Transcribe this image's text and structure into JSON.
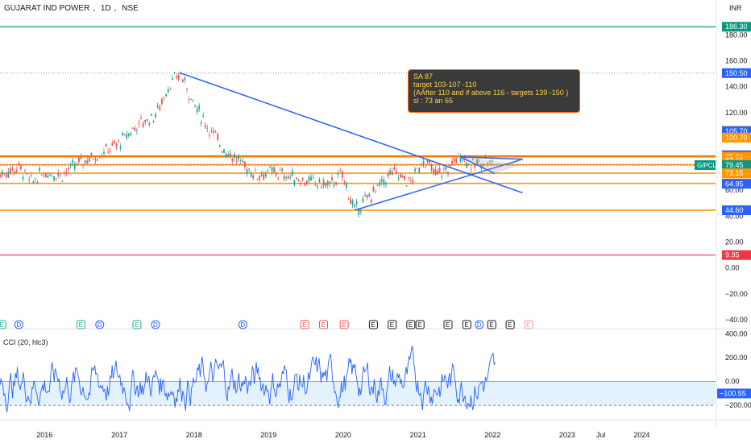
{
  "header": {
    "symbol": "GUJARAT IND POWER",
    "interval": "1D",
    "exchange": "NSE",
    "currency": "INR"
  },
  "note": {
    "lines": [
      "SA  87",
      "target 103-107 -110",
      "(AAfter 110 and if above 116 - targets 139 -150  )",
      "sl : 73 an 65"
    ]
  },
  "indicator": {
    "label": "CCI (20, hlc3)"
  },
  "colors": {
    "up": "#26a69a",
    "down": "#ef5350",
    "orange": "#ff9800",
    "blue": "#2962ff",
    "green_line": "#089981",
    "red_line": "#f23645",
    "cci": "#2962ff"
  },
  "chart_data": [
    {
      "type": "candlestick",
      "yrange": [
        -45,
        202
      ],
      "ylabel": "",
      "y_ticks": [
        "180.00",
        "160.00",
        "140.00",
        "120.00",
        "100.00",
        "80.00",
        "60.00",
        "40.00",
        "20.00",
        "0.00",
        "−20.00",
        "−40.00"
      ],
      "y_tick_values": [
        180,
        160,
        140,
        120,
        100,
        80,
        60,
        40,
        20,
        0,
        -20,
        -40
      ],
      "x_tick_labels": [
        "2016",
        "2017",
        "2018",
        "2019",
        "2020",
        "2021",
        "2022",
        "2023",
        "Jul",
        "2024"
      ],
      "x_tick_dates": [
        "2016-01-01",
        "2017-01-01",
        "2018-01-01",
        "2019-01-01",
        "2020-01-01",
        "2021-01-01",
        "2022-01-01",
        "2023-01-01",
        "2023-07-01",
        "2024-01-01"
      ],
      "price_levels": [
        {
          "label": "186.30",
          "value": 186.3,
          "color": "#089981",
          "line": true
        },
        {
          "label": "150.50",
          "value": 150.5,
          "color": "#2962ff",
          "line": false,
          "dotted": true
        },
        {
          "label": "105.95",
          "value": 105.95,
          "color": "#ff9800",
          "line": false
        },
        {
          "label": "105.70",
          "value": 105.7,
          "color": "#2962ff",
          "line": false
        },
        {
          "label": "100.70",
          "value": 100.7,
          "color": "#ff9800",
          "line": false
        },
        {
          "label": "87.10",
          "value": 87.1,
          "color": "#2962ff",
          "line": false
        },
        {
          "label": "86.50",
          "value": 86.5,
          "color": "#f23645",
          "line": true
        },
        {
          "label": "85.80",
          "value": 85.8,
          "color": "#ff9800",
          "line": true
        },
        {
          "label": "83.15",
          "value": 83.15,
          "color": "#ff9800",
          "line": false
        },
        {
          "label": "79.75",
          "value": 79.75,
          "color": "#ff9800",
          "line": true
        },
        {
          "label": "79.45",
          "value": 79.45,
          "color": "#089981",
          "line": false
        },
        {
          "label": "73.15",
          "value": 73.15,
          "color": "#ff9800",
          "line": true
        },
        {
          "label": "65.30",
          "value": 65.3,
          "color": "#ff9800",
          "line": true
        },
        {
          "label": "64.95",
          "value": 64.95,
          "color": "#2962ff",
          "line": false
        },
        {
          "label": "44.60",
          "value": 44.6,
          "color": "#ff9800",
          "line": true
        },
        {
          "label": "44.60",
          "value": 44.6,
          "color": "#2962ff",
          "line": false
        },
        {
          "label": "9.95",
          "value": 9.95,
          "color": "#f23645",
          "line": true
        }
      ],
      "last_price": {
        "label": "GIPCL",
        "value": 79.45
      },
      "price_path": [
        [
          "2015-06-01",
          72
        ],
        [
          "2015-09-01",
          78
        ],
        [
          "2015-11-01",
          66
        ],
        [
          "2016-01-01",
          74
        ],
        [
          "2016-04-01",
          72
        ],
        [
          "2016-07-01",
          82
        ],
        [
          "2016-10-01",
          88
        ],
        [
          "2017-01-01",
          96
        ],
        [
          "2017-04-01",
          110
        ],
        [
          "2017-07-01",
          118
        ],
        [
          "2017-09-01",
          140
        ],
        [
          "2017-11-01",
          150
        ],
        [
          "2018-01-01",
          128
        ],
        [
          "2018-03-01",
          112
        ],
        [
          "2018-06-01",
          92
        ],
        [
          "2018-09-01",
          80
        ],
        [
          "2018-11-01",
          72
        ],
        [
          "2019-02-01",
          74
        ],
        [
          "2019-05-01",
          70
        ],
        [
          "2019-08-01",
          66
        ],
        [
          "2019-11-01",
          64
        ],
        [
          "2020-01-01",
          72
        ],
        [
          "2020-03-01",
          44
        ],
        [
          "2020-06-01",
          58
        ],
        [
          "2020-09-01",
          74
        ],
        [
          "2020-12-01",
          66
        ],
        [
          "2021-02-01",
          84
        ],
        [
          "2021-04-01",
          72
        ],
        [
          "2021-06-01",
          76
        ],
        [
          "2021-08-01",
          88
        ],
        [
          "2021-10-01",
          78
        ],
        [
          "2021-12-01",
          84
        ],
        [
          "2022-01-15",
          79.45
        ]
      ],
      "trendlines": [
        {
          "from": [
            "2017-11-01",
            150.5
          ],
          "to": [
            "2022-06-01",
            58.0
          ],
          "color": "#2962ff"
        },
        {
          "from": [
            "2020-03-01",
            44.6
          ],
          "to": [
            "2022-06-01",
            84.0
          ],
          "color": "#2962ff"
        },
        {
          "from": [
            "2021-08-01",
            85.8
          ],
          "to": [
            "2022-06-01",
            84.0
          ],
          "color": "#2962ff"
        },
        {
          "from": [
            "2021-08-01",
            85.8
          ],
          "to": [
            "2022-01-15",
            73.0
          ],
          "color": "#2962ff"
        }
      ]
    },
    {
      "type": "line",
      "name": "CCI (20, hlc3)",
      "yrange": [
        -300,
        430
      ],
      "y_ticks": [
        "400.00",
        "200.00",
        "0.00",
        "−100.55",
        "−200.00"
      ],
      "y_tick_values": [
        400,
        200,
        0,
        -100.55,
        -200
      ],
      "band": [
        -200,
        0
      ],
      "last_value": -100.55
    }
  ]
}
